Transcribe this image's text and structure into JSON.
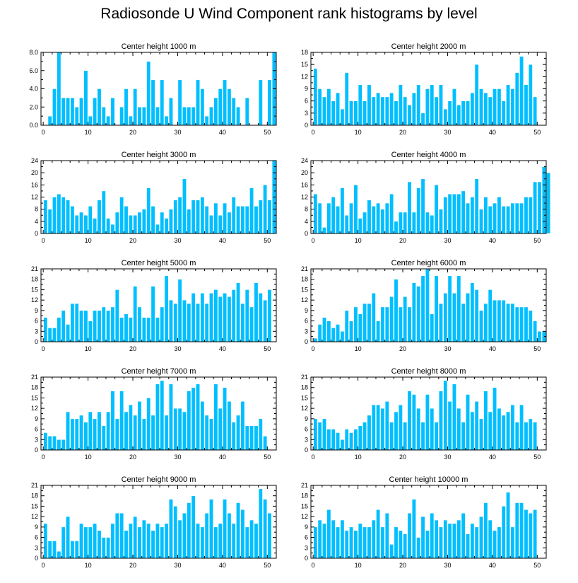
{
  "figure": {
    "title": "Radiosonde U Wind Component rank histograms by level",
    "bar_color": "#00BFFF",
    "bar_edge_color": "#ffffff",
    "axis_color": "#000000"
  },
  "chart_data": [
    {
      "type": "bar",
      "title": "Center height 1000 m",
      "xlim": [
        -0.5,
        52
      ],
      "ylim": [
        0,
        8
      ],
      "xticks": [
        0,
        10,
        20,
        30,
        40,
        50
      ],
      "yticks": [
        0,
        2,
        4,
        6,
        8
      ],
      "ytick_labels": [
        "0.0",
        "2.0",
        "4.0",
        "6.0",
        "8.0"
      ],
      "values": [
        0,
        1,
        4,
        8,
        3,
        3,
        3,
        2,
        3,
        6,
        1,
        3,
        4,
        2,
        1,
        3,
        0,
        2,
        4,
        1,
        4,
        2,
        2,
        7,
        5,
        2,
        5,
        1,
        3,
        0,
        5,
        2,
        2,
        2,
        5,
        4,
        1,
        2,
        3,
        4,
        5,
        4,
        3,
        2,
        0,
        3,
        0,
        0,
        5,
        0,
        5,
        8
      ]
    },
    {
      "type": "bar",
      "title": "Center height 2000 m",
      "xlim": [
        -0.5,
        52
      ],
      "ylim": [
        0,
        18
      ],
      "xticks": [
        0,
        10,
        20,
        30,
        40,
        50
      ],
      "yticks": [
        0,
        3,
        6,
        9,
        12,
        15,
        18
      ],
      "ytick_labels": [
        "0",
        "3",
        "6",
        "9",
        "12",
        "15",
        "18"
      ],
      "values": [
        14,
        9,
        7,
        9,
        6,
        8,
        4,
        13,
        6,
        6,
        10,
        6,
        10,
        7,
        8,
        7,
        7,
        8,
        6,
        10,
        7,
        5,
        8,
        10,
        3,
        9,
        10,
        7,
        10,
        4,
        6,
        9,
        5,
        6,
        6,
        8,
        15,
        9,
        8,
        7,
        9,
        9,
        6,
        10,
        9,
        13,
        17,
        10,
        15,
        7
      ]
    },
    {
      "type": "bar",
      "title": "Center height 3000 m",
      "xlim": [
        -0.5,
        52
      ],
      "ylim": [
        0,
        24
      ],
      "xticks": [
        0,
        10,
        20,
        30,
        40,
        50
      ],
      "yticks": [
        0,
        4,
        8,
        12,
        16,
        20,
        24
      ],
      "ytick_labels": [
        "0",
        "4",
        "8",
        "12",
        "16",
        "20",
        "24"
      ],
      "values": [
        11,
        8,
        12,
        13,
        12,
        11,
        9,
        6,
        7,
        6,
        9,
        5,
        11,
        14,
        5,
        3,
        7,
        12,
        9,
        6,
        6,
        7,
        8,
        15,
        9,
        3,
        7,
        5,
        8,
        11,
        12,
        18,
        8,
        11,
        11,
        12,
        9,
        6,
        10,
        6,
        10,
        7,
        12,
        9,
        9,
        9,
        15,
        9,
        11,
        16,
        11,
        24
      ]
    },
    {
      "type": "bar",
      "title": "Center height 4000 m",
      "xlim": [
        -0.5,
        52
      ],
      "ylim": [
        0,
        24
      ],
      "xticks": [
        0,
        10,
        20,
        30,
        40,
        50
      ],
      "yticks": [
        0,
        4,
        8,
        12,
        16,
        20,
        24
      ],
      "ytick_labels": [
        "0",
        "4",
        "8",
        "12",
        "16",
        "20",
        "24"
      ],
      "values": [
        13,
        10,
        2,
        10,
        12,
        9,
        15,
        6,
        10,
        16,
        5,
        7,
        11,
        9,
        10,
        8,
        10,
        13,
        4,
        7,
        7,
        17,
        7,
        15,
        18,
        7,
        6,
        16,
        8,
        12,
        13,
        13,
        13,
        14,
        10,
        12,
        18,
        8,
        12,
        9,
        10,
        12,
        9,
        9,
        10,
        10,
        10,
        12,
        12,
        17,
        17,
        22,
        20
      ]
    },
    {
      "type": "bar",
      "title": "Center height 5000 m",
      "xlim": [
        -0.5,
        52
      ],
      "ylim": [
        0,
        21
      ],
      "xticks": [
        0,
        10,
        20,
        30,
        40,
        50
      ],
      "yticks": [
        0,
        3,
        6,
        9,
        12,
        15,
        18,
        21
      ],
      "ytick_labels": [
        "0",
        "3",
        "6",
        "9",
        "12",
        "15",
        "18",
        "21"
      ],
      "values": [
        7,
        4,
        4,
        7,
        9,
        5,
        11,
        11,
        9,
        9,
        6,
        9,
        9,
        10,
        9,
        10,
        15,
        7,
        8,
        7,
        16,
        10,
        7,
        7,
        16,
        7,
        10,
        19,
        12,
        11,
        18,
        12,
        11,
        14,
        11,
        14,
        11,
        14,
        15,
        13,
        14,
        13,
        15,
        17,
        11,
        15,
        10,
        17,
        14,
        12,
        15
      ]
    },
    {
      "type": "bar",
      "title": "Center height 6000 m",
      "xlim": [
        -0.5,
        52
      ],
      "ylim": [
        0,
        21
      ],
      "xticks": [
        0,
        10,
        20,
        30,
        40,
        50
      ],
      "yticks": [
        0,
        3,
        6,
        9,
        12,
        15,
        18,
        21
      ],
      "ytick_labels": [
        "0",
        "3",
        "6",
        "9",
        "12",
        "15",
        "18",
        "21"
      ],
      "values": [
        1,
        5,
        7,
        6,
        4,
        5,
        3,
        9,
        6,
        10,
        8,
        11,
        11,
        14,
        6,
        10,
        10,
        13,
        18,
        10,
        13,
        10,
        17,
        16,
        19,
        21,
        8,
        19,
        11,
        14,
        19,
        14,
        19,
        11,
        14,
        17,
        15,
        9,
        11,
        15,
        12,
        12,
        12,
        11,
        11,
        10,
        10,
        10,
        9,
        6,
        3,
        3
      ]
    },
    {
      "type": "bar",
      "title": "Center height 7000 m",
      "xlim": [
        -0.5,
        52
      ],
      "ylim": [
        0,
        21
      ],
      "xticks": [
        0,
        10,
        20,
        30,
        40,
        50
      ],
      "yticks": [
        0,
        3,
        6,
        9,
        12,
        15,
        18,
        21
      ],
      "ytick_labels": [
        "0",
        "3",
        "6",
        "9",
        "12",
        "15",
        "18",
        "21"
      ],
      "values": [
        5,
        4,
        4,
        3,
        3,
        11,
        9,
        9,
        10,
        8,
        11,
        9,
        11,
        7,
        11,
        17,
        9,
        17,
        11,
        13,
        10,
        14,
        9,
        15,
        10,
        19,
        20,
        10,
        19,
        12,
        12,
        11,
        17,
        18,
        19,
        14,
        10,
        9,
        19,
        12,
        18,
        14,
        8,
        10,
        14,
        7,
        7,
        7,
        9,
        4
      ]
    },
    {
      "type": "bar",
      "title": "Center height 8000 m",
      "xlim": [
        -0.5,
        52
      ],
      "ylim": [
        0,
        21
      ],
      "xticks": [
        0,
        10,
        20,
        30,
        40,
        50
      ],
      "yticks": [
        0,
        3,
        6,
        9,
        12,
        15,
        18,
        21
      ],
      "ytick_labels": [
        "0",
        "3",
        "6",
        "9",
        "12",
        "15",
        "18",
        "21"
      ],
      "values": [
        9,
        8,
        9,
        6,
        6,
        5,
        3,
        6,
        5,
        6,
        7,
        8,
        10,
        13,
        13,
        12,
        14,
        8,
        11,
        13,
        8,
        17,
        16,
        12,
        8,
        16,
        12,
        8,
        17,
        20,
        14,
        19,
        12,
        8,
        16,
        11,
        14,
        9,
        17,
        11,
        18,
        12,
        10,
        11,
        13,
        8,
        13,
        8,
        9,
        8
      ]
    },
    {
      "type": "bar",
      "title": "Center height 9000 m",
      "xlim": [
        -0.5,
        52
      ],
      "ylim": [
        0,
        21
      ],
      "xticks": [
        0,
        10,
        20,
        30,
        40,
        50
      ],
      "yticks": [
        0,
        3,
        6,
        9,
        12,
        15,
        18,
        21
      ],
      "ytick_labels": [
        "0",
        "3",
        "6",
        "9",
        "12",
        "15",
        "18",
        "21"
      ],
      "values": [
        10,
        5,
        5,
        2,
        9,
        12,
        5,
        5,
        10,
        9,
        9,
        10,
        8,
        6,
        6,
        10,
        13,
        13,
        8,
        10,
        12,
        9,
        11,
        10,
        8,
        10,
        9,
        10,
        17,
        15,
        11,
        13,
        16,
        18,
        10,
        9,
        13,
        17,
        9,
        10,
        17,
        13,
        10,
        16,
        14,
        9,
        11,
        10,
        20,
        17,
        13
      ]
    },
    {
      "type": "bar",
      "title": "Center height 10000 m",
      "xlim": [
        -0.5,
        52
      ],
      "ylim": [
        0,
        21
      ],
      "xticks": [
        0,
        10,
        20,
        30,
        40,
        50
      ],
      "yticks": [
        0,
        3,
        6,
        9,
        12,
        15,
        18,
        21
      ],
      "ytick_labels": [
        "0",
        "3",
        "6",
        "9",
        "12",
        "15",
        "18",
        "21"
      ],
      "values": [
        9,
        11,
        10,
        14,
        11,
        9,
        11,
        8,
        9,
        8,
        10,
        9,
        9,
        11,
        14,
        9,
        13,
        4,
        9,
        8,
        7,
        13,
        17,
        6,
        12,
        8,
        13,
        11,
        9,
        11,
        10,
        10,
        11,
        13,
        7,
        10,
        9,
        12,
        16,
        11,
        8,
        9,
        15,
        19,
        9,
        16,
        16,
        14,
        13,
        14
      ]
    }
  ]
}
